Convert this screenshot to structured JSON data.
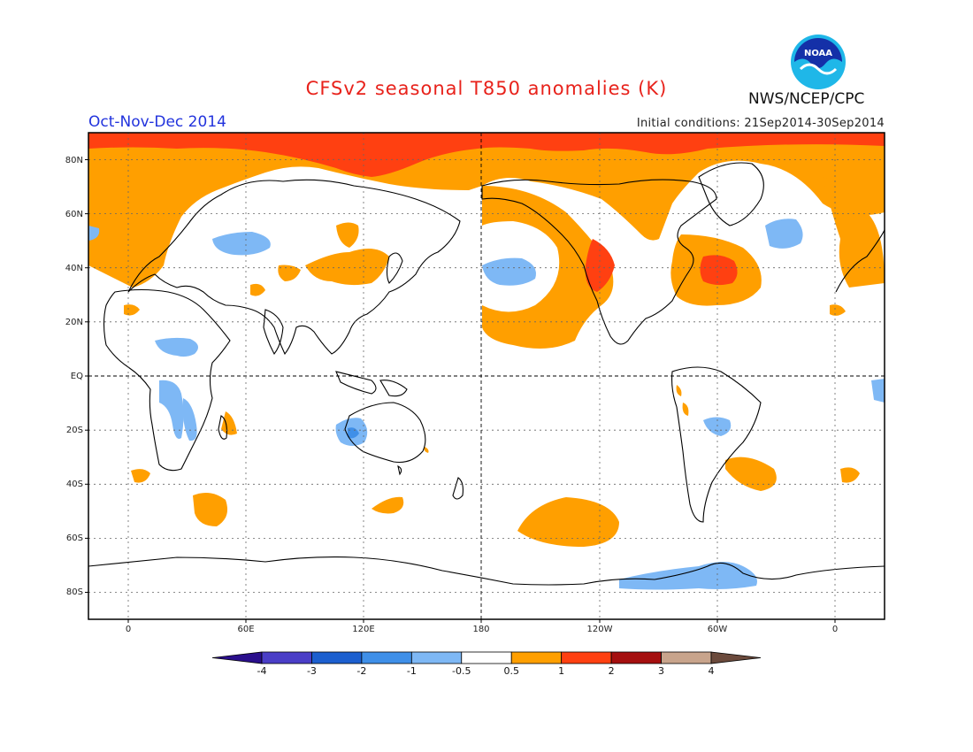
{
  "header": {
    "title": "CFSv2 seasonal T850 anomalies (K)",
    "season": "Oct-Nov-Dec 2014",
    "initial_conditions": "Initial conditions: 21Sep2014-30Sep2014",
    "agency": "NWS/NCEP/CPC",
    "logo_text": "NOAA"
  },
  "map": {
    "projection": "cylindrical equidistant, centered 180",
    "lat_labels": [
      "80N",
      "60N",
      "40N",
      "20N",
      "EQ",
      "20S",
      "40S",
      "60S",
      "80S"
    ],
    "lon_labels": [
      "0",
      "60E",
      "120E",
      "180",
      "120W",
      "60W",
      "0"
    ],
    "gridlines": "dotted, every 20 degrees latitude and 60 degrees longitude"
  },
  "colorbar": {
    "labels": [
      "-4",
      "-3",
      "-2",
      "-1",
      "-0.5",
      "0.5",
      "1",
      "2",
      "3",
      "4"
    ],
    "colors": [
      "#2a0f8c",
      "#4a3ec7",
      "#1c5fcf",
      "#3f8fe8",
      "#7eb8f5",
      "#ffffff",
      "#ff9f00",
      "#ff4011",
      "#a50f0f",
      "#c8a48c",
      "#6b4a3c"
    ]
  }
}
